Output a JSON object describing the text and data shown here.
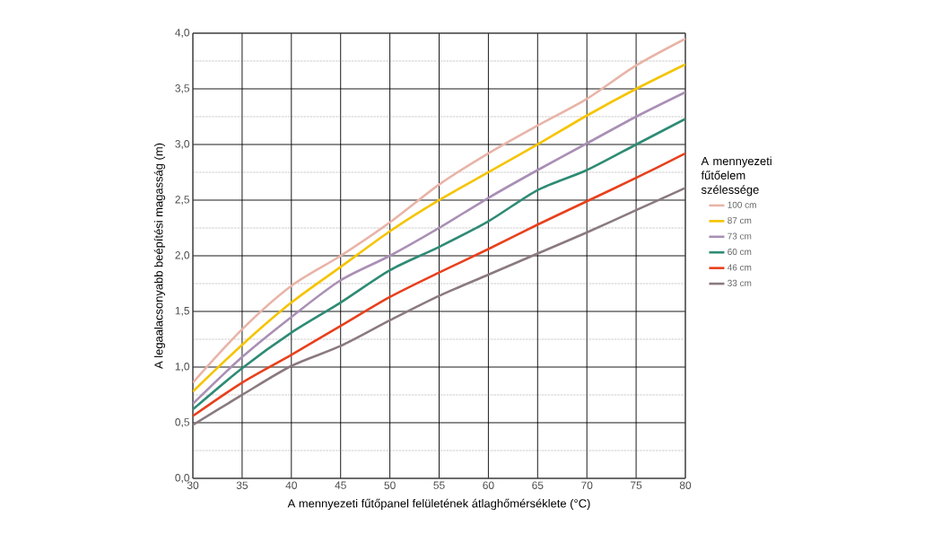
{
  "chart_data": {
    "type": "line",
    "xlabel": "A mennyezeti fűtőpanel felületének átlaghőmérséklete (°C)",
    "ylabel": "A legaalacsonyabb beépítési magasság (m)",
    "legend_title": "A mennyezeti fűtőelem szélessége",
    "x": [
      30,
      35,
      40,
      45,
      50,
      55,
      60,
      65,
      70,
      75,
      80
    ],
    "series": [
      {
        "name": "100 cm",
        "color": "#e8b4a8",
        "values": [
          0.86,
          1.34,
          1.73,
          2.0,
          2.3,
          2.64,
          2.92,
          3.17,
          3.41,
          3.71,
          3.95
        ]
      },
      {
        "name": "87 cm",
        "color": "#f5c400",
        "values": [
          0.78,
          1.2,
          1.58,
          1.9,
          2.22,
          2.5,
          2.75,
          3.0,
          3.26,
          3.5,
          3.72
        ]
      },
      {
        "name": "73 cm",
        "color": "#a98fb5",
        "values": [
          0.67,
          1.09,
          1.45,
          1.78,
          2.0,
          2.25,
          2.52,
          2.77,
          3.01,
          3.25,
          3.47
        ]
      },
      {
        "name": "60 cm",
        "color": "#2e8b74",
        "values": [
          0.62,
          0.99,
          1.31,
          1.58,
          1.87,
          2.08,
          2.31,
          2.59,
          2.77,
          3.0,
          3.23
        ]
      },
      {
        "name": "46 cm",
        "color": "#e8401c",
        "values": [
          0.56,
          0.86,
          1.11,
          1.37,
          1.63,
          1.85,
          2.06,
          2.28,
          2.49,
          2.7,
          2.92
        ]
      },
      {
        "name": "33 cm",
        "color": "#8a7a80",
        "values": [
          0.48,
          0.75,
          1.01,
          1.19,
          1.42,
          1.64,
          1.83,
          2.02,
          2.21,
          2.41,
          2.61
        ]
      }
    ],
    "xlim": [
      30,
      80
    ],
    "ylim": [
      0,
      4
    ],
    "xticks": [
      30,
      35,
      40,
      45,
      50,
      55,
      60,
      65,
      70,
      75,
      80
    ],
    "yticks": [
      {
        "value": 0,
        "label": "0,0"
      },
      {
        "value": 0.5,
        "label": "0,5"
      },
      {
        "value": 1,
        "label": "1,0"
      },
      {
        "value": 1.5,
        "label": "1,5"
      },
      {
        "value": 2,
        "label": "2,0"
      },
      {
        "value": 2.5,
        "label": "2,5"
      },
      {
        "value": 3,
        "label": "3,0"
      },
      {
        "value": 3.5,
        "label": "3,5"
      },
      {
        "value": 4,
        "label": "4,0"
      }
    ],
    "grid": true,
    "legend": "right",
    "marker": "none",
    "line_style": "solid"
  }
}
